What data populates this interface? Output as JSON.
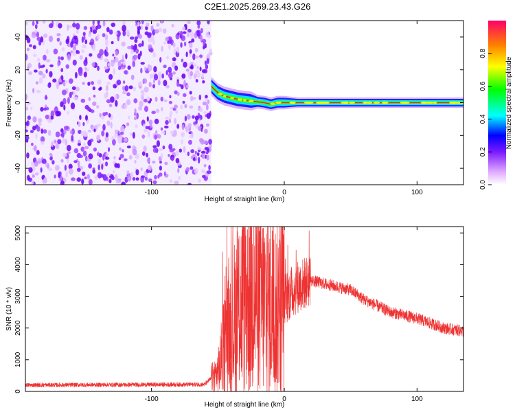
{
  "title": "C2E1.2025.269.23.43.G26",
  "chart_data": [
    {
      "type": "heatmap",
      "name": "spectrogram",
      "xlabel": "Height of straight line (km)",
      "ylabel": "Frequency (Hz)",
      "xlim": [
        -195,
        135
      ],
      "ylim": [
        -50,
        50
      ],
      "xticks": [
        -100,
        0,
        100
      ],
      "xtick_labels": [
        "-100",
        "0",
        "100"
      ],
      "yticks": [
        -40,
        -20,
        0,
        20,
        40
      ],
      "ytick_labels": [
        "-40",
        "-20",
        "0",
        "20",
        "40"
      ],
      "noise_region_x": [
        -195,
        -55
      ],
      "signal_trace": {
        "x": [
          -55,
          -50,
          -45,
          -40,
          -35,
          -30,
          -25,
          -20,
          -15,
          -10,
          -5,
          0,
          10,
          20,
          50,
          100,
          135
        ],
        "freq": [
          10,
          6,
          4,
          3,
          2,
          1.5,
          1,
          0.5,
          0,
          -1,
          0,
          0,
          0,
          0,
          0,
          0,
          0
        ]
      },
      "colorbar": {
        "label": "Normalized spectral amplitude",
        "ticks": [
          0.0,
          0.2,
          0.4,
          0.6,
          0.8
        ],
        "tick_labels": [
          "0.0",
          "0.2",
          "0.4",
          "0.6",
          "0.8"
        ],
        "range": [
          0,
          1
        ]
      }
    },
    {
      "type": "line",
      "name": "snr",
      "xlabel": "Height of straight line (km)",
      "ylabel": "SNR (10 * v/v)",
      "xlim": [
        -195,
        135
      ],
      "ylim": [
        0,
        5200
      ],
      "xticks": [
        -100,
        0,
        100
      ],
      "xtick_labels": [
        "-100",
        "0",
        "100"
      ],
      "yticks": [
        0,
        1000,
        2000,
        3000,
        4000,
        5000
      ],
      "ytick_labels": [
        "0",
        "1000",
        "2000",
        "3000",
        "4000",
        "5000"
      ],
      "color": "#ee3333",
      "envelope": {
        "x": [
          -195,
          -60,
          -50,
          -45,
          -40,
          -35,
          -30,
          -25,
          -20,
          -15,
          -10,
          -5,
          0,
          10,
          20,
          30,
          40,
          50,
          60,
          80,
          100,
          120,
          135
        ],
        "y": [
          200,
          220,
          600,
          1500,
          2000,
          2600,
          3000,
          3200,
          3000,
          2800,
          2700,
          2600,
          2900,
          3300,
          3500,
          3400,
          3300,
          3200,
          2900,
          2500,
          2300,
          2000,
          1900
        ]
      }
    }
  ]
}
